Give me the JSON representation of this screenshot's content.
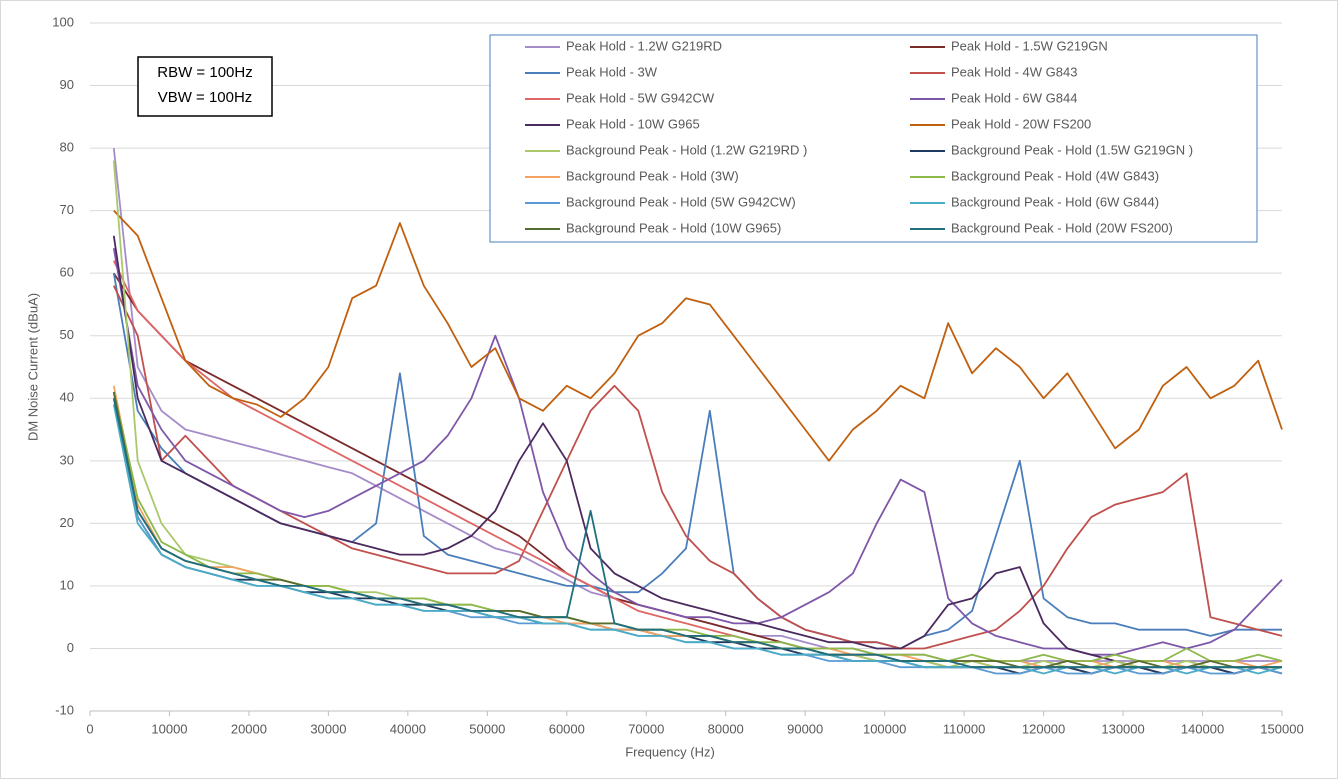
{
  "chart_data": {
    "type": "line",
    "x_label": "Frequency (Hz)",
    "y_label": "DM Noise Current (dBuA)",
    "annotations": [
      "RBW = 100Hz",
      "VBW = 100Hz"
    ],
    "xlim": [
      0,
      150000
    ],
    "xticks": [
      0,
      10000,
      20000,
      30000,
      40000,
      50000,
      60000,
      70000,
      80000,
      90000,
      100000,
      110000,
      120000,
      130000,
      140000,
      150000
    ],
    "ylim": [
      -10,
      100
    ],
    "yticks": [
      -10,
      0,
      10,
      20,
      30,
      40,
      50,
      60,
      70,
      80,
      90,
      100
    ],
    "grid": true,
    "legend": "upper right",
    "x": [
      3000,
      6000,
      9000,
      12000,
      15000,
      18000,
      21000,
      24000,
      27000,
      30000,
      33000,
      36000,
      39000,
      42000,
      45000,
      48000,
      51000,
      54000,
      57000,
      60000,
      63000,
      66000,
      69000,
      72000,
      75000,
      78000,
      81000,
      84000,
      87000,
      90000,
      93000,
      96000,
      99000,
      102000,
      105000,
      108000,
      111000,
      114000,
      117000,
      120000,
      123000,
      126000,
      129000,
      132000,
      135000,
      138000,
      141000,
      144000,
      147000,
      150000
    ],
    "series": [
      {
        "name": "Peak Hold - 1.2W G219RD",
        "color": "#a68bc9",
        "values": [
          80,
          45,
          38,
          35,
          34,
          33,
          32,
          31,
          30,
          29,
          28,
          26,
          24,
          22,
          20,
          18,
          16,
          15,
          13,
          11,
          9,
          8,
          7,
          6,
          5,
          4,
          3,
          2,
          2,
          1,
          0,
          0,
          -1,
          -1,
          -1,
          -2,
          -2,
          -2,
          -2,
          -2,
          -2,
          -2,
          -2,
          -2,
          -2,
          -2,
          -2,
          -2,
          -2,
          -2
        ]
      },
      {
        "name": "Peak Hold - 1.5W G219GN",
        "color": "#7b2a2a",
        "values": [
          60,
          54,
          50,
          46,
          44,
          42,
          40,
          38,
          36,
          34,
          32,
          30,
          28,
          26,
          24,
          22,
          20,
          18,
          15,
          12,
          10,
          8,
          7,
          6,
          5,
          4,
          3,
          2,
          1,
          0,
          -1,
          -1,
          -2,
          -2,
          -2,
          -3,
          -3,
          -3,
          -3,
          -3,
          -3,
          -4,
          -3,
          -3,
          -4,
          -3,
          -3,
          -4,
          -3,
          -3
        ]
      },
      {
        "name": "Peak Hold - 3W",
        "color": "#4a7ebb",
        "values": [
          60,
          38,
          32,
          28,
          26,
          24,
          22,
          20,
          19,
          18,
          17,
          20,
          44,
          18,
          15,
          14,
          13,
          12,
          11,
          10,
          10,
          9,
          9,
          12,
          16,
          38,
          12,
          8,
          5,
          3,
          2,
          1,
          1,
          0,
          2,
          3,
          6,
          18,
          30,
          8,
          5,
          4,
          4,
          3,
          3,
          3,
          2,
          3,
          3,
          3
        ]
      },
      {
        "name": "Peak Hold - 4W G843",
        "color": "#c0504d",
        "values": [
          58,
          50,
          30,
          34,
          30,
          26,
          24,
          22,
          20,
          18,
          16,
          15,
          14,
          13,
          12,
          12,
          12,
          14,
          22,
          30,
          38,
          42,
          38,
          25,
          18,
          14,
          12,
          8,
          5,
          3,
          2,
          1,
          1,
          0,
          0,
          1,
          2,
          3,
          6,
          10,
          16,
          21,
          23,
          24,
          25,
          28,
          5,
          4,
          3,
          2
        ]
      },
      {
        "name": "Peak Hold - 5W G942CW",
        "color": "#e06666",
        "values": [
          62,
          54,
          50,
          46,
          43,
          40,
          38,
          36,
          34,
          32,
          30,
          28,
          26,
          24,
          22,
          20,
          18,
          16,
          14,
          12,
          10,
          8,
          6,
          5,
          4,
          3,
          2,
          1,
          0,
          0,
          -1,
          -1,
          -1,
          -2,
          -2,
          -2,
          -2,
          -3,
          -3,
          -3,
          -3,
          -3,
          -3,
          -3,
          -3,
          -3,
          -3,
          -3,
          -3,
          -3
        ]
      },
      {
        "name": "Peak Hold - 6W G844",
        "color": "#7e57a8",
        "values": [
          64,
          42,
          35,
          30,
          28,
          26,
          24,
          22,
          21,
          22,
          24,
          26,
          28,
          30,
          34,
          40,
          50,
          40,
          25,
          16,
          12,
          9,
          7,
          6,
          5,
          5,
          4,
          4,
          5,
          7,
          9,
          12,
          20,
          27,
          25,
          8,
          4,
          2,
          1,
          0,
          0,
          -1,
          -1,
          0,
          1,
          0,
          1,
          3,
          7,
          11
        ]
      },
      {
        "name": "Peak Hold - 10W G965",
        "color": "#4b2a5e",
        "values": [
          66,
          40,
          30,
          28,
          26,
          24,
          22,
          20,
          19,
          18,
          17,
          16,
          15,
          15,
          16,
          18,
          22,
          30,
          36,
          30,
          16,
          12,
          10,
          8,
          7,
          6,
          5,
          4,
          3,
          2,
          1,
          1,
          0,
          0,
          2,
          7,
          8,
          12,
          13,
          4,
          0,
          -1,
          -2,
          -3,
          -3,
          -3,
          -3,
          -3,
          -3,
          -3
        ]
      },
      {
        "name": "Peak Hold - 20W FS200",
        "color": "#c0600f",
        "values": [
          70,
          66,
          56,
          46,
          42,
          40,
          39,
          37,
          40,
          45,
          56,
          58,
          68,
          58,
          52,
          45,
          48,
          40,
          38,
          42,
          40,
          44,
          50,
          52,
          56,
          55,
          50,
          45,
          40,
          35,
          30,
          35,
          38,
          42,
          40,
          52,
          44,
          48,
          45,
          40,
          44,
          38,
          32,
          35,
          42,
          45,
          40,
          42,
          46,
          35
        ]
      },
      {
        "name": "Background Peak - Hold (1.2W G219RD )",
        "color": "#a9c96b",
        "values": [
          78,
          30,
          20,
          15,
          14,
          13,
          12,
          11,
          10,
          10,
          9,
          9,
          8,
          8,
          7,
          7,
          6,
          6,
          5,
          5,
          4,
          4,
          3,
          3,
          2,
          2,
          1,
          1,
          0,
          0,
          -1,
          -1,
          -2,
          -2,
          -2,
          -3,
          -2,
          -3,
          -3,
          -2,
          -3,
          -3,
          -2,
          -3,
          -3,
          -2,
          -3,
          -3,
          -3,
          -3
        ]
      },
      {
        "name": "Background Peak - Hold (1.5W G219GN )",
        "color": "#1f3a5f",
        "values": [
          41,
          21,
          15,
          13,
          12,
          11,
          11,
          10,
          9,
          9,
          8,
          8,
          7,
          7,
          6,
          6,
          5,
          5,
          4,
          4,
          4,
          3,
          3,
          2,
          2,
          1,
          1,
          0,
          0,
          -1,
          -1,
          -2,
          -2,
          -2,
          -3,
          -3,
          -3,
          -3,
          -4,
          -3,
          -3,
          -4,
          -3,
          -3,
          -4,
          -3,
          -3,
          -4,
          -3,
          -4
        ]
      },
      {
        "name": "Background Peak - Hold (3W)",
        "color": "#f4a261",
        "values": [
          42,
          23,
          16,
          14,
          13,
          13,
          12,
          11,
          10,
          10,
          9,
          8,
          8,
          7,
          7,
          6,
          6,
          5,
          5,
          4,
          4,
          3,
          3,
          2,
          2,
          2,
          1,
          1,
          0,
          0,
          0,
          -1,
          -1,
          -1,
          -2,
          -2,
          -2,
          -2,
          -2,
          -3,
          -2,
          -2,
          -3,
          -2,
          -2,
          -3,
          -2,
          -2,
          -3,
          -2
        ]
      },
      {
        "name": "Background Peak - Hold (4W G843)",
        "color": "#8db84a",
        "values": [
          41,
          24,
          17,
          15,
          13,
          12,
          12,
          11,
          10,
          10,
          9,
          8,
          8,
          8,
          7,
          7,
          6,
          6,
          5,
          5,
          4,
          4,
          3,
          3,
          3,
          2,
          2,
          1,
          1,
          0,
          0,
          0,
          -1,
          -1,
          -1,
          -2,
          -1,
          -2,
          -2,
          -1,
          -2,
          -2,
          -1,
          -2,
          -2,
          0,
          -2,
          -2,
          -1,
          -2
        ]
      },
      {
        "name": "Background Peak - Hold (5W G942CW)",
        "color": "#5b9bd5",
        "values": [
          40,
          21,
          15,
          13,
          12,
          11,
          10,
          10,
          9,
          8,
          8,
          7,
          7,
          6,
          6,
          5,
          5,
          4,
          4,
          4,
          3,
          3,
          2,
          2,
          1,
          1,
          0,
          0,
          -1,
          -1,
          -2,
          -2,
          -2,
          -3,
          -3,
          -3,
          -3,
          -4,
          -4,
          -3,
          -4,
          -4,
          -3,
          -4,
          -4,
          -3,
          -4,
          -4,
          -3,
          -4
        ]
      },
      {
        "name": "Background Peak - Hold (6W G844)",
        "color": "#4bacc6",
        "values": [
          39,
          20,
          15,
          13,
          12,
          11,
          10,
          10,
          9,
          8,
          8,
          7,
          7,
          6,
          6,
          6,
          5,
          5,
          4,
          4,
          3,
          3,
          2,
          2,
          1,
          1,
          0,
          0,
          -1,
          -1,
          -1,
          -2,
          -2,
          -2,
          -3,
          -3,
          -3,
          -3,
          -3,
          -4,
          -3,
          -3,
          -4,
          -3,
          -3,
          -4,
          -3,
          -3,
          -4,
          -3
        ]
      },
      {
        "name": "Background Peak - Hold (10W G965)",
        "color": "#556b2f",
        "values": [
          41,
          22,
          16,
          14,
          13,
          12,
          11,
          11,
          10,
          9,
          9,
          8,
          8,
          7,
          7,
          6,
          6,
          6,
          5,
          5,
          4,
          4,
          3,
          3,
          2,
          2,
          1,
          1,
          0,
          0,
          -1,
          -1,
          -1,
          -2,
          -2,
          -2,
          -2,
          -2,
          -3,
          -3,
          -2,
          -3,
          -3,
          -2,
          -3,
          -3,
          -2,
          -3,
          -3,
          -3
        ]
      },
      {
        "name": "Background Peak - Hold (20W FS200)",
        "color": "#1f6f7f",
        "values": [
          40,
          22,
          16,
          14,
          13,
          12,
          11,
          10,
          10,
          9,
          9,
          8,
          8,
          7,
          7,
          6,
          6,
          5,
          5,
          5,
          22,
          4,
          3,
          3,
          2,
          2,
          1,
          1,
          0,
          0,
          -1,
          -1,
          -1,
          -2,
          -2,
          -2,
          -3,
          -3,
          -3,
          -3,
          -3,
          -3,
          -3,
          -3,
          -3,
          -3,
          -3,
          -3,
          -3,
          -3
        ]
      }
    ]
  }
}
